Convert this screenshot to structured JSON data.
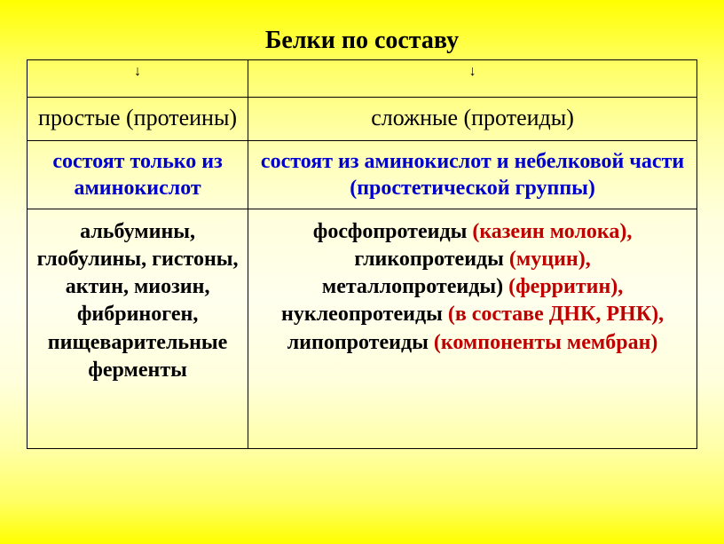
{
  "title": "Белки по составу",
  "arrows": {
    "left": "↓",
    "right": "↓"
  },
  "types": {
    "left": "простые (протеины)",
    "right": "сложные (протеиды)"
  },
  "descriptions": {
    "left": "состоят только из аминокислот",
    "right": "состоят из аминокислот и небелковой части (простетической группы)"
  },
  "examples": {
    "left": "альбумины, глобулины, гистоны, актин, миозин, фибриноген, пищеварительные ферменты",
    "right_parts": {
      "p1": "фосфопротеиды ",
      "p2": "(казеин молока),",
      "p3": "гликопротеиды ",
      "p4": "(муцин),",
      "p5": "металлопротеиды) ",
      "p6": "(ферритин),",
      "p7": "нуклеопротеиды ",
      "p8": "(в составе ДНК, РНК),",
      "p9": "липопротеиды ",
      "p10": "(компоненты мембран)"
    }
  },
  "styling": {
    "background_gradient": [
      "#ffff00",
      "#ffffee",
      "#ffff00"
    ],
    "border_color": "#000000",
    "title_fontsize": 28,
    "type_fontsize": 26,
    "desc_fontsize": 24,
    "desc_color": "#0000cc",
    "example_fontsize": 24,
    "highlight_color": "#c00000",
    "font_family": "Times New Roman"
  }
}
